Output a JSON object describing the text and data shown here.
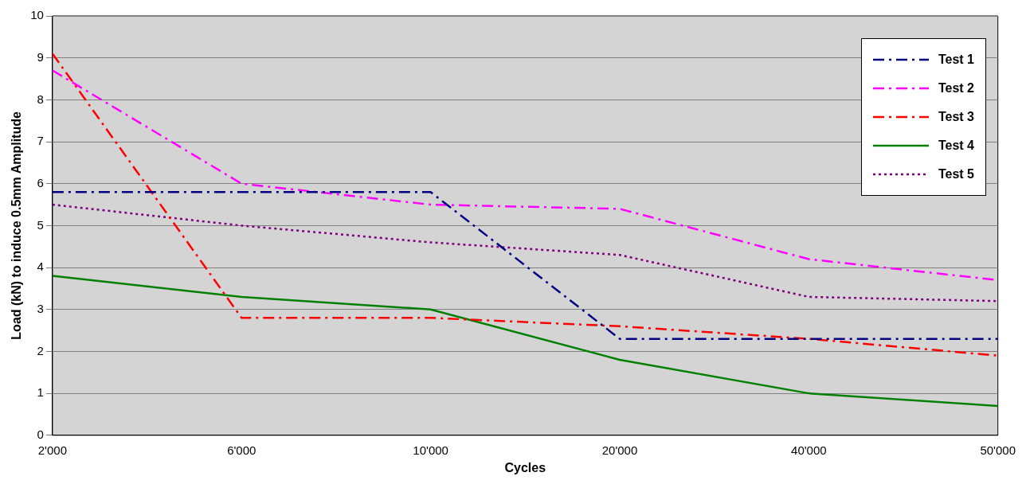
{
  "chart_data": {
    "type": "line",
    "xlabel": "Cycles",
    "ylabel": "Load (kN) to induce 0.5mm Amplitude",
    "categories": [
      "2'000",
      "6'000",
      "10'000",
      "20'000",
      "40'000",
      "50'000"
    ],
    "ylim": [
      0,
      10
    ],
    "yticks": [
      0,
      1,
      2,
      3,
      4,
      5,
      6,
      7,
      8,
      9,
      10
    ],
    "grid": "y",
    "legend": "top right",
    "marker": "none",
    "series": [
      {
        "name": "Test 1",
        "color": "#000080",
        "line_style": "dashed",
        "values": [
          5.8,
          5.8,
          5.8,
          2.3,
          2.3,
          2.3
        ]
      },
      {
        "name": "Test 2",
        "color": "#ff00ff",
        "line_style": "dashed",
        "values": [
          8.7,
          6.0,
          5.5,
          5.4,
          4.2,
          3.7
        ]
      },
      {
        "name": "Test 3",
        "color": "#ff0000",
        "line_style": "dashed",
        "values": [
          9.1,
          2.8,
          2.8,
          2.6,
          2.3,
          1.9
        ]
      },
      {
        "name": "Test 4",
        "color": "#008000",
        "line_style": "solid",
        "values": [
          3.8,
          3.3,
          3.0,
          1.8,
          1.0,
          0.7
        ]
      },
      {
        "name": "Test 5",
        "color": "#800080",
        "line_style": "dotted",
        "values": [
          5.5,
          5.0,
          4.6,
          4.3,
          3.3,
          3.2
        ]
      }
    ]
  }
}
